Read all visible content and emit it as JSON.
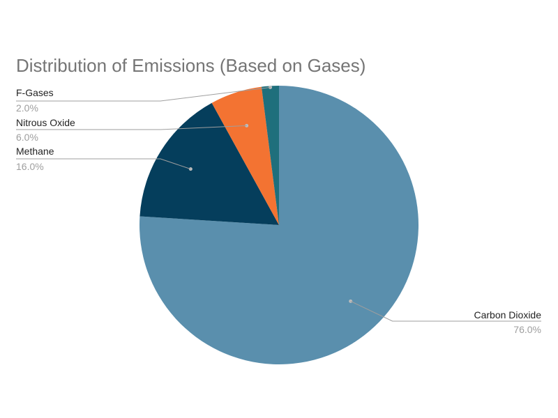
{
  "chart_data": {
    "type": "pie",
    "title": "Distribution of Emissions (Based on Gases)",
    "slices": [
      {
        "label": "Carbon Dioxide",
        "value": 76.0,
        "value_label": "76.0%",
        "color": "#5a8fad"
      },
      {
        "label": "Methane",
        "value": 16.0,
        "value_label": "16.0%",
        "color": "#053e5c"
      },
      {
        "label": "Nitrous Oxide",
        "value": 6.0,
        "value_label": "6.0%",
        "color": "#f37332"
      },
      {
        "label": "F-Gases",
        "value": 2.0,
        "value_label": "2.0%",
        "color": "#1f6f7c"
      }
    ],
    "start_angle_deg": 0,
    "direction": "clockwise",
    "legend": "none",
    "label_style": "outside with leader lines"
  }
}
